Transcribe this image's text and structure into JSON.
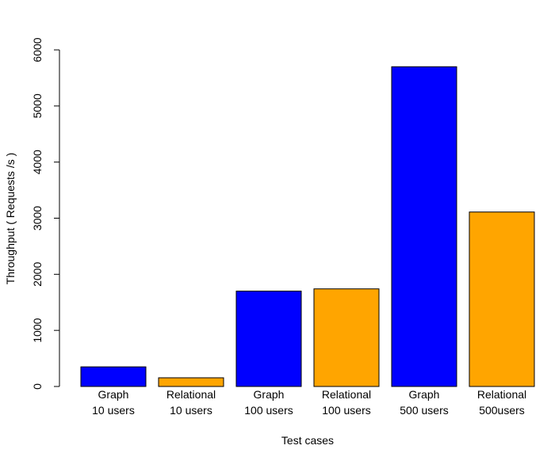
{
  "chart_data": {
    "type": "bar",
    "title": "",
    "xlabel": "Test cases",
    "ylabel": "Throughput ( Requests /s )",
    "ylim": [
      0,
      6000
    ],
    "yticks": [
      0,
      1000,
      2000,
      3000,
      4000,
      5000,
      6000
    ],
    "grid": false,
    "legend": "none",
    "categories": [
      {
        "line1": "Graph",
        "line2": "10 users",
        "value": 350,
        "color": "#0000ff"
      },
      {
        "line1": "Relational",
        "line2": "10 users",
        "value": 155,
        "color": "#ffa500"
      },
      {
        "line1": "Graph",
        "line2": "100 users",
        "value": 1700,
        "color": "#0000ff"
      },
      {
        "line1": "Relational",
        "line2": "100 users",
        "value": 1740,
        "color": "#ffa500"
      },
      {
        "line1": "Graph",
        "line2": "500 users",
        "value": 5700,
        "color": "#0000ff"
      },
      {
        "line1": "Relational",
        "line2": "500users",
        "value": 3110,
        "color": "#ffa500"
      }
    ]
  }
}
